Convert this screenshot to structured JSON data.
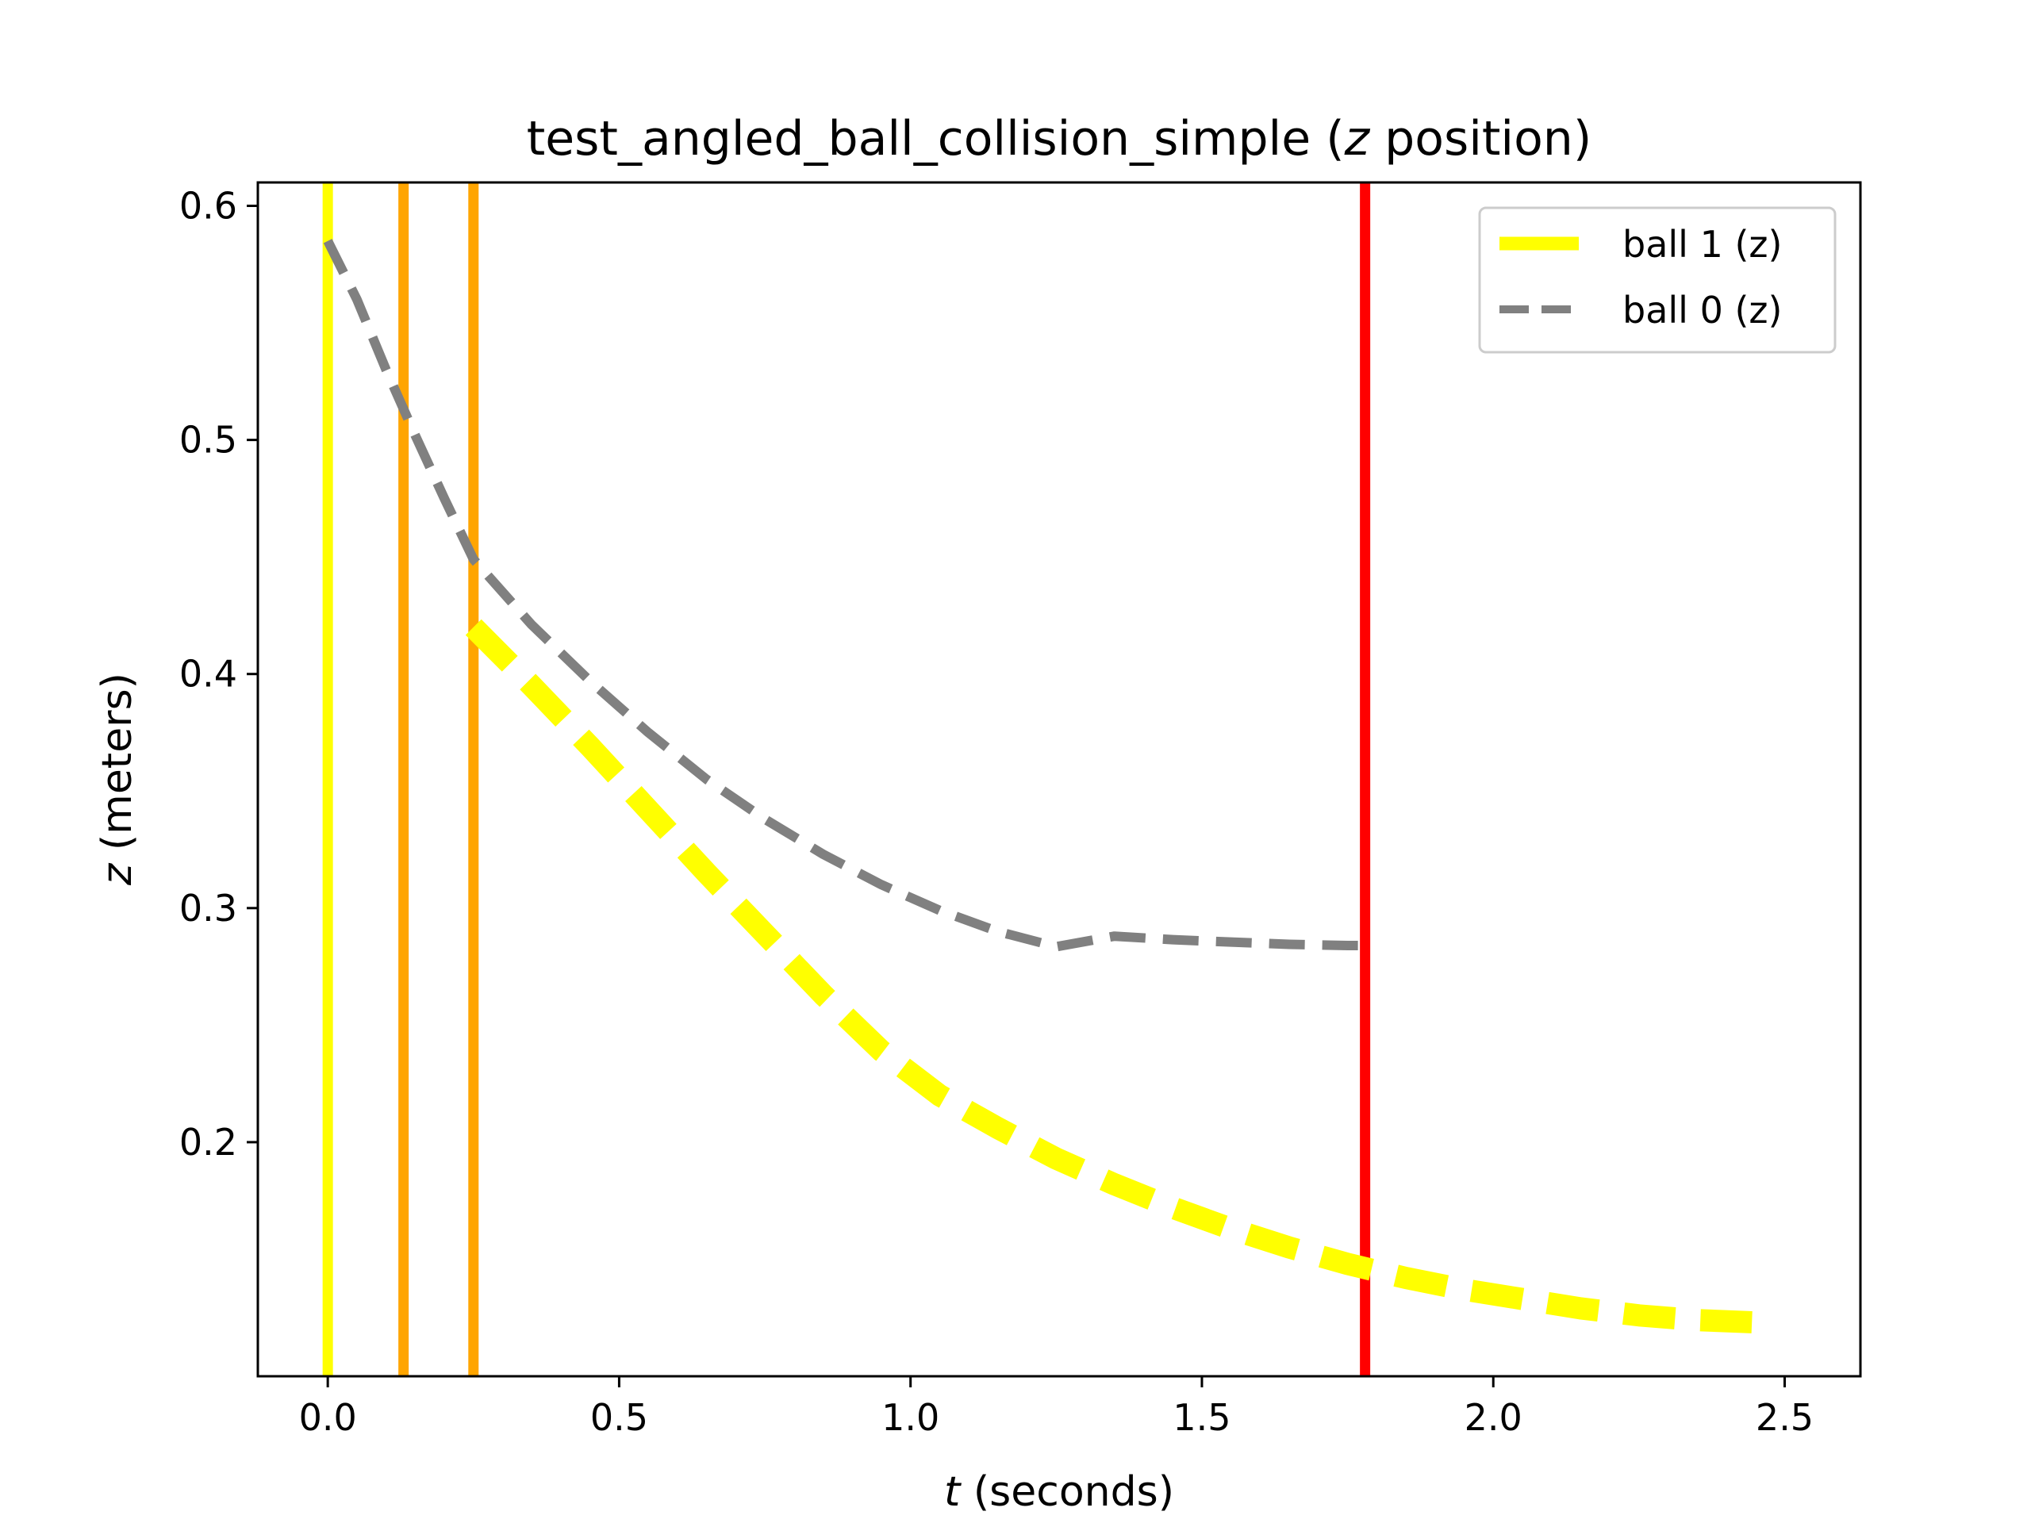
{
  "chart_data": {
    "type": "line",
    "title": "test_angled_ball_collision_simple (z position)",
    "title_parts": {
      "prefix": "test_angled_ball_collision_simple (",
      "italic": "z",
      "suffix": " position)"
    },
    "xlabel": "t (seconds)",
    "xlabel_parts": {
      "italic": "t",
      "rest": " (seconds)"
    },
    "ylabel": "z (meters)",
    "ylabel_parts": {
      "italic": "z",
      "rest": " (meters)"
    },
    "xlim": [
      -0.12,
      2.63
    ],
    "ylim": [
      0.1,
      0.61
    ],
    "xticks": [
      0.0,
      0.5,
      1.0,
      1.5,
      2.0,
      2.5
    ],
    "xtick_labels": [
      "0.0",
      "0.5",
      "1.0",
      "1.5",
      "2.0",
      "2.5"
    ],
    "yticks": [
      0.2,
      0.3,
      0.4,
      0.5,
      0.6
    ],
    "ytick_labels": [
      "0.2",
      "0.3",
      "0.4",
      "0.5",
      "0.6"
    ],
    "grid": false,
    "legend_position": "top-right",
    "series": [
      {
        "name": "ball 1 (z)",
        "color": "#ffff00",
        "style": "dashed",
        "x": [
          0.25,
          0.35,
          0.45,
          0.55,
          0.65,
          0.75,
          0.85,
          0.95,
          1.05,
          1.15,
          1.25,
          1.35,
          1.45,
          1.55,
          1.65,
          1.75,
          1.85,
          1.95,
          2.05,
          2.15,
          2.25,
          2.35,
          2.45
        ],
        "y": [
          0.42,
          0.395,
          0.369,
          0.342,
          0.315,
          0.289,
          0.263,
          0.239,
          0.22,
          0.206,
          0.193,
          0.182,
          0.172,
          0.163,
          0.155,
          0.148,
          0.142,
          0.137,
          0.133,
          0.129,
          0.126,
          0.124,
          0.123
        ]
      },
      {
        "name": "ball 0 (z)",
        "color": "#808080",
        "style": "dashed",
        "x": [
          0.0,
          0.05,
          0.1,
          0.15,
          0.2,
          0.25,
          0.35,
          0.45,
          0.55,
          0.65,
          0.75,
          0.85,
          0.95,
          1.05,
          1.15,
          1.25,
          1.35,
          1.45,
          1.55,
          1.65,
          1.75,
          1.78
        ],
        "y": [
          0.585,
          0.56,
          0.53,
          0.502,
          0.475,
          0.449,
          0.421,
          0.397,
          0.375,
          0.355,
          0.338,
          0.323,
          0.31,
          0.299,
          0.29,
          0.2835,
          0.288,
          0.2865,
          0.2855,
          0.2845,
          0.284,
          0.284
        ]
      }
    ],
    "vertical_lines": [
      {
        "x": 0.0,
        "color": "#ffff00"
      },
      {
        "x": 0.13,
        "color": "#ffa500"
      },
      {
        "x": 0.25,
        "color": "#ffa500"
      },
      {
        "x": 1.78,
        "color": "#ff0000"
      }
    ]
  }
}
